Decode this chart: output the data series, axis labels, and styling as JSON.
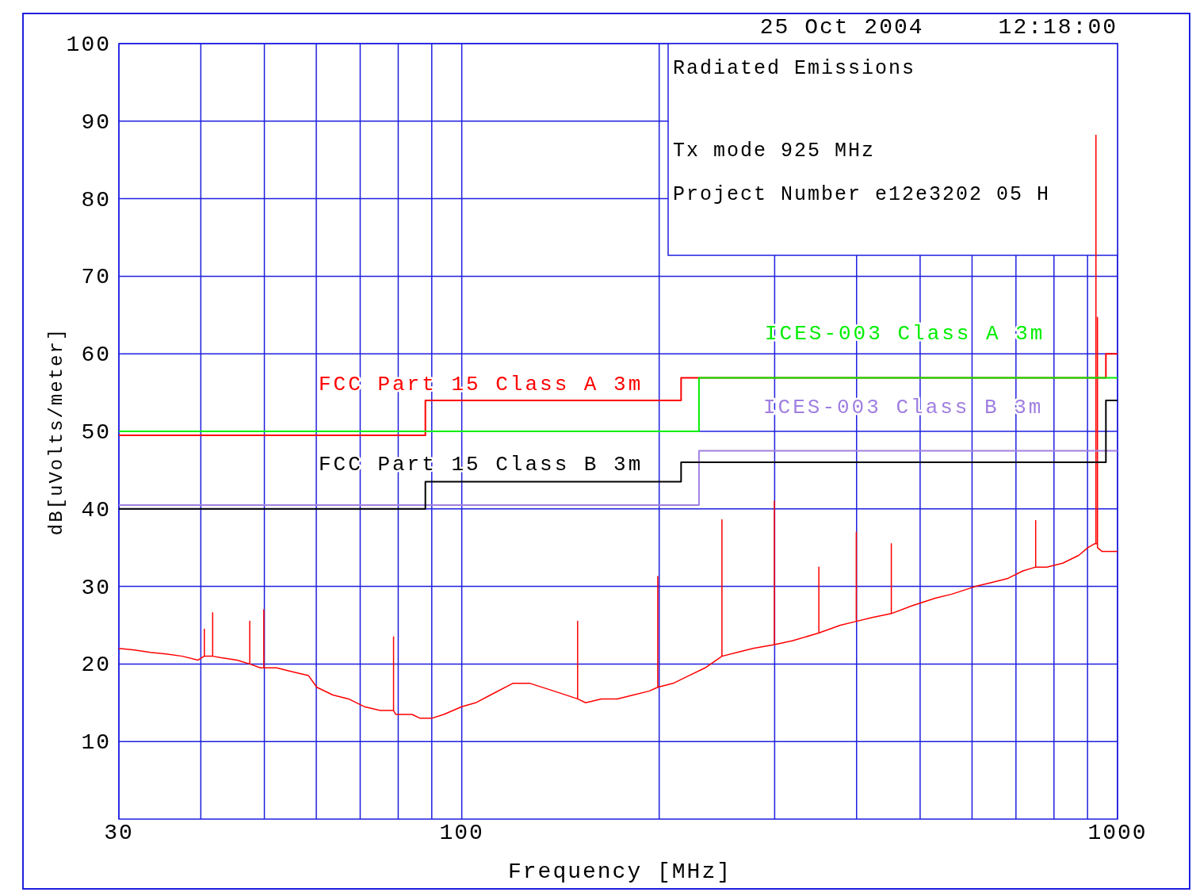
{
  "chart_data": {
    "type": "line",
    "title": "Radiated Emissions",
    "xlabel": "Frequency [MHz]",
    "ylabel": "dB[uVolts/meter]",
    "annotations": [
      "25 Oct 2004     12:18:00",
      "Tx mode 925 MHz",
      "Project Number e12e3202   05 H"
    ],
    "log": "x",
    "grid": true,
    "legend": false,
    "marker": "none",
    "line_style": "solid",
    "xlim": [
      30,
      1000
    ],
    "ylim": [
      0,
      100
    ],
    "xticks": [
      30,
      {
        "value": 40,
        "label": null
      },
      {
        "value": 50,
        "label": null
      },
      {
        "value": 60,
        "label": null
      },
      {
        "value": 70,
        "label": null
      },
      {
        "value": 80,
        "label": null
      },
      {
        "value": 90,
        "label": null
      },
      100,
      {
        "value": 200,
        "label": null
      },
      {
        "value": 300,
        "label": null
      },
      {
        "value": 400,
        "label": null
      },
      {
        "value": 500,
        "label": null
      },
      {
        "value": 600,
        "label": null
      },
      {
        "value": 700,
        "label": null
      },
      {
        "value": 800,
        "label": null
      },
      {
        "value": 900,
        "label": null
      },
      1000
    ],
    "yticks": [
      10,
      20,
      30,
      40,
      50,
      60,
      70,
      80,
      90,
      100
    ],
    "series": [
      {
        "type": "line",
        "color": "#ff0000",
        "x": [
          30,
          31.7,
          33.5,
          35.4,
          37.5,
          39.6,
          40.1,
          40.5,
          40.5,
          40.5,
          41.7,
          41.7,
          41.7,
          43,
          45.4,
          47.5,
          47.5,
          47.5,
          49.3,
          49.9,
          49.9,
          49.9,
          52.2,
          55.2,
          58.4,
          60.1,
          63.6,
          67.2,
          71,
          75.1,
          78.7,
          78.7,
          78.7,
          79.3,
          84,
          86.4,
          90,
          93.9,
          100,
          105,
          110.6,
          119.6,
          127.1,
          138.3,
          150.2,
          150.2,
          150.2,
          154.5,
          163.3,
          172.7,
          182.6,
          193,
          199,
          199,
          199,
          210,
          222,
          235,
          249.3,
          249.3,
          249.3,
          263,
          278,
          299.7,
          299.7,
          299.7,
          319.6,
          350.4,
          350.4,
          350.4,
          377.9,
          399.6,
          399.6,
          399.6,
          422.6,
          451.9,
          451.9,
          451.9,
          485.7,
          527.9,
          558.5,
          607.1,
          641.9,
          678.6,
          717.5,
          750.2,
          750.2,
          750.2,
          780.2,
          824.9,
          872.1,
          901.3,
          922,
          927,
          927,
          927,
          932,
          932,
          932,
          947.7,
          1000
        ],
        "values": [
          22,
          21.8,
          21.5,
          21.3,
          21,
          20.5,
          20.8,
          21,
          24.5,
          21,
          21,
          26.6,
          21,
          20.8,
          20.5,
          20,
          25.5,
          20,
          19.5,
          19.5,
          27,
          19.5,
          19.5,
          19,
          18.5,
          17,
          16,
          15.5,
          14.5,
          14,
          14,
          23.5,
          14,
          13.5,
          13.5,
          13,
          13,
          13.5,
          14.5,
          15,
          16,
          17.5,
          17.5,
          16.5,
          15.5,
          25.5,
          15.5,
          15,
          15.5,
          15.5,
          16,
          16.5,
          17,
          31.3,
          17,
          17.5,
          18.5,
          19.5,
          21,
          38.6,
          21,
          21.5,
          22,
          22.5,
          41,
          22.5,
          23,
          24,
          32.5,
          24,
          25,
          25.5,
          37,
          25.5,
          26,
          26.5,
          35.5,
          26.5,
          27.5,
          28.5,
          29,
          30,
          30.5,
          31,
          32,
          32.5,
          38.5,
          32.5,
          32.5,
          33,
          34,
          35,
          35.5,
          35.5,
          88.2,
          35.5,
          35.5,
          64.7,
          35,
          34.5,
          34.5
        ]
      },
      {
        "type": "step",
        "name": "FCC Part 15 Class A 3m",
        "color": "#ff0000",
        "x": [
          30,
          88,
          216,
          960,
          1000
        ],
        "values": [
          49.5,
          54,
          56.9,
          60,
          60
        ]
      },
      {
        "type": "step",
        "name": "ICES-003 Class A 3m",
        "color": "#00ee00",
        "x": [
          30,
          230,
          1000
        ],
        "values": [
          50,
          56.9,
          56.9
        ]
      },
      {
        "type": "step",
        "name": "ICES-003 Class B 3m",
        "color": "#a080e0",
        "x": [
          30,
          230,
          1000
        ],
        "values": [
          40.5,
          47.5,
          47.5
        ]
      },
      {
        "type": "step",
        "name": "FCC Part 15 Class B 3m",
        "color": "#000000",
        "x": [
          30,
          88,
          216,
          960,
          1000
        ],
        "values": [
          40,
          43.5,
          46,
          54,
          54
        ]
      }
    ]
  }
}
